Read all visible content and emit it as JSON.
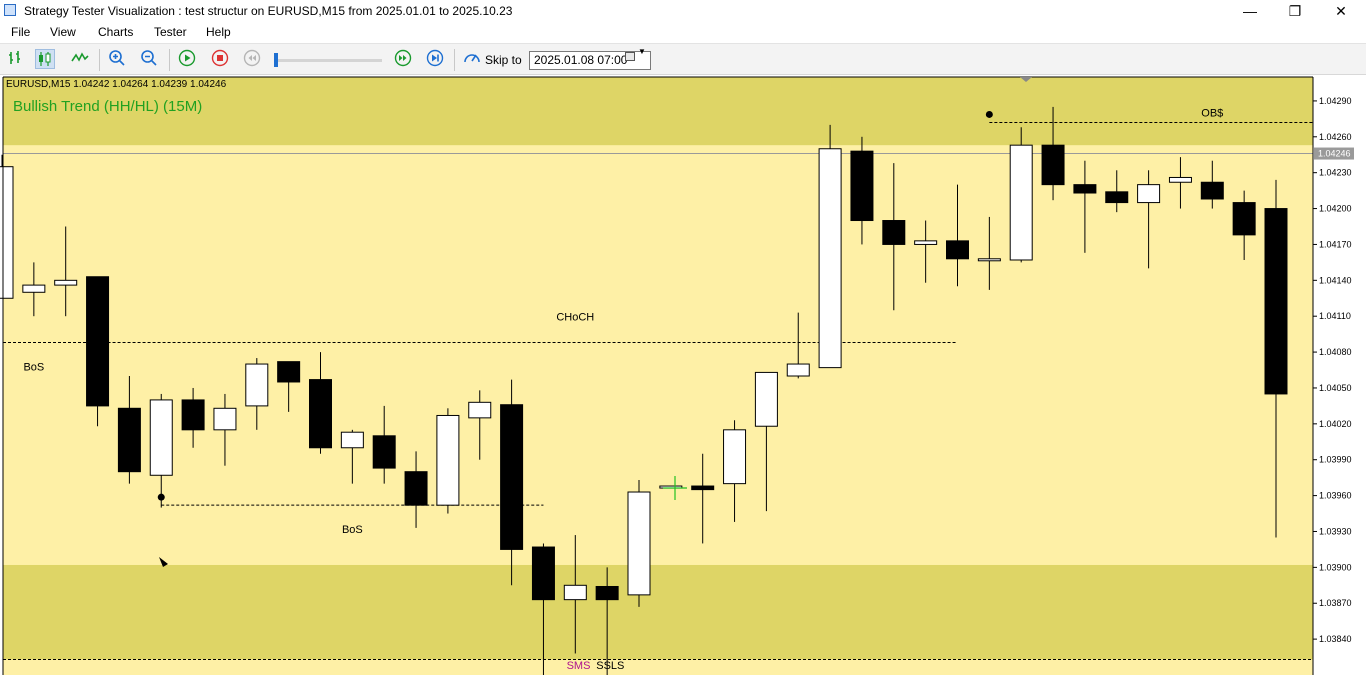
{
  "window": {
    "title": "Strategy Tester Visualization : test structur on EURUSD,M15 from 2025.01.01 to 2025.10.23",
    "minimize": "—",
    "maximize": "❐",
    "close": "✕"
  },
  "menu": [
    "File",
    "View",
    "Charts",
    "Tester",
    "Help"
  ],
  "toolbar": {
    "skip_label": "Skip to",
    "date_value": "2025.01.08 07:00"
  },
  "chart": {
    "symbol_line": "EURUSD,M15  1.04242 1.04264 1.04239 1.04246",
    "trend_label": "Bullish Trend (HH/HL) (15M)",
    "current_price": "1.04246",
    "colors": {
      "background": "#fef0a6",
      "zone": "#ded566",
      "trend_text": "#21a121",
      "price_tag": "#9a9a9a"
    },
    "y_axis": {
      "min": 1.0381,
      "max": 1.0431,
      "ticks": [
        1.0429,
        1.0426,
        1.0423,
        1.042,
        1.0417,
        1.0414,
        1.0411,
        1.0408,
        1.0405,
        1.0402,
        1.0399,
        1.0396,
        1.0393,
        1.039,
        1.0387,
        1.0384
      ],
      "tick_labels": [
        "1.04290",
        "1.04260",
        "1.04230",
        "1.04200",
        "1.04170",
        "1.04140",
        "1.04110",
        "1.04080",
        "1.04050",
        "1.04020",
        "1.03990",
        "1.03960",
        "1.03930",
        "1.03900",
        "1.03870",
        "1.03840"
      ]
    },
    "candles": [
      {
        "o": 1.04125,
        "h": 1.04245,
        "l": 1.04125,
        "c": 1.04235
      },
      {
        "o": 1.0413,
        "h": 1.04155,
        "l": 1.0411,
        "c": 1.04136
      },
      {
        "o": 1.04136,
        "h": 1.04185,
        "l": 1.0411,
        "c": 1.0414
      },
      {
        "o": 1.04143,
        "h": 1.04143,
        "l": 1.04018,
        "c": 1.04035
      },
      {
        "o": 1.04033,
        "h": 1.0406,
        "l": 1.0397,
        "c": 1.0398
      },
      {
        "o": 1.03977,
        "h": 1.04045,
        "l": 1.0395,
        "c": 1.0404
      },
      {
        "o": 1.0404,
        "h": 1.0405,
        "l": 1.04,
        "c": 1.04015
      },
      {
        "o": 1.04015,
        "h": 1.04045,
        "l": 1.03985,
        "c": 1.04033
      },
      {
        "o": 1.04035,
        "h": 1.04075,
        "l": 1.04015,
        "c": 1.0407
      },
      {
        "o": 1.04072,
        "h": 1.04072,
        "l": 1.0403,
        "c": 1.04055
      },
      {
        "o": 1.04057,
        "h": 1.0408,
        "l": 1.03995,
        "c": 1.04
      },
      {
        "o": 1.04,
        "h": 1.04015,
        "l": 1.0397,
        "c": 1.04013
      },
      {
        "o": 1.0401,
        "h": 1.04035,
        "l": 1.0397,
        "c": 1.03983
      },
      {
        "o": 1.0398,
        "h": 1.03997,
        "l": 1.03933,
        "c": 1.03952
      },
      {
        "o": 1.03952,
        "h": 1.04033,
        "l": 1.03945,
        "c": 1.04027
      },
      {
        "o": 1.04025,
        "h": 1.04048,
        "l": 1.0399,
        "c": 1.04038
      },
      {
        "o": 1.04036,
        "h": 1.04057,
        "l": 1.03885,
        "c": 1.03915
      },
      {
        "o": 1.03917,
        "h": 1.0392,
        "l": 1.0381,
        "c": 1.03873
      },
      {
        "o": 1.03873,
        "h": 1.03927,
        "l": 1.03828,
        "c": 1.03885
      },
      {
        "o": 1.03884,
        "h": 1.039,
        "l": 1.0381,
        "c": 1.03873
      },
      {
        "o": 1.03877,
        "h": 1.03973,
        "l": 1.03867,
        "c": 1.03963
      },
      {
        "o": 1.03968,
        "h": 1.03968,
        "l": 1.03968,
        "c": 1.03968
      },
      {
        "o": 1.03968,
        "h": 1.03995,
        "l": 1.0392,
        "c": 1.03965
      },
      {
        "o": 1.0397,
        "h": 1.04023,
        "l": 1.03938,
        "c": 1.04015
      },
      {
        "o": 1.04018,
        "h": 1.04063,
        "l": 1.03947,
        "c": 1.04063
      },
      {
        "o": 1.0406,
        "h": 1.04113,
        "l": 1.04058,
        "c": 1.0407
      },
      {
        "o": 1.04067,
        "h": 1.0427,
        "l": 1.04067,
        "c": 1.0425
      },
      {
        "o": 1.04248,
        "h": 1.0426,
        "l": 1.0417,
        "c": 1.0419
      },
      {
        "o": 1.0419,
        "h": 1.04238,
        "l": 1.04115,
        "c": 1.0417
      },
      {
        "o": 1.0417,
        "h": 1.0419,
        "l": 1.04138,
        "c": 1.04173
      },
      {
        "o": 1.04173,
        "h": 1.0422,
        "l": 1.04135,
        "c": 1.04158
      },
      {
        "o": 1.04158,
        "h": 1.04193,
        "l": 1.04132,
        "c": 1.04158
      },
      {
        "o": 1.04157,
        "h": 1.04268,
        "l": 1.04155,
        "c": 1.04253
      },
      {
        "o": 1.04253,
        "h": 1.04285,
        "l": 1.04207,
        "c": 1.0422
      },
      {
        "o": 1.0422,
        "h": 1.0424,
        "l": 1.04163,
        "c": 1.04213
      },
      {
        "o": 1.04214,
        "h": 1.04232,
        "l": 1.04197,
        "c": 1.04205
      },
      {
        "o": 1.04205,
        "h": 1.04232,
        "l": 1.0415,
        "c": 1.0422
      },
      {
        "o": 1.04222,
        "h": 1.04243,
        "l": 1.042,
        "c": 1.04226
      },
      {
        "o": 1.04222,
        "h": 1.0424,
        "l": 1.042,
        "c": 1.04208
      },
      {
        "o": 1.04205,
        "h": 1.04215,
        "l": 1.04157,
        "c": 1.04178
      },
      {
        "o": 1.042,
        "h": 1.04224,
        "l": 1.03925,
        "c": 1.04045
      }
    ],
    "zones": [
      {
        "top": 1.0431,
        "bottom": 1.04253
      },
      {
        "top": 1.03902,
        "bottom": 1.03823
      }
    ],
    "levels": [
      {
        "price": 1.04088,
        "from": 3,
        "to": 30,
        "label": "CHoCH",
        "label_at": 18
      },
      {
        "price": 1.04088,
        "from": -1,
        "to": 3,
        "label": "BoS",
        "label_at": 1
      },
      {
        "price": 1.03952,
        "from": 5,
        "to": 17,
        "label": "BoS",
        "label_at": 11
      },
      {
        "price": 1.04272,
        "from": 31,
        "to": 42,
        "label": "OB$",
        "label_at": 38
      },
      {
        "price": 1.03823,
        "from": -1,
        "to": 42,
        "label": "",
        "label_at": 0
      }
    ],
    "extra_labels": [
      {
        "text": "SMS",
        "idx": 18.1,
        "price": 1.03815,
        "color": "#b0138f"
      },
      {
        "text": "SSLS",
        "idx": 19.1,
        "price": 1.03815,
        "color": "#000000"
      }
    ]
  }
}
